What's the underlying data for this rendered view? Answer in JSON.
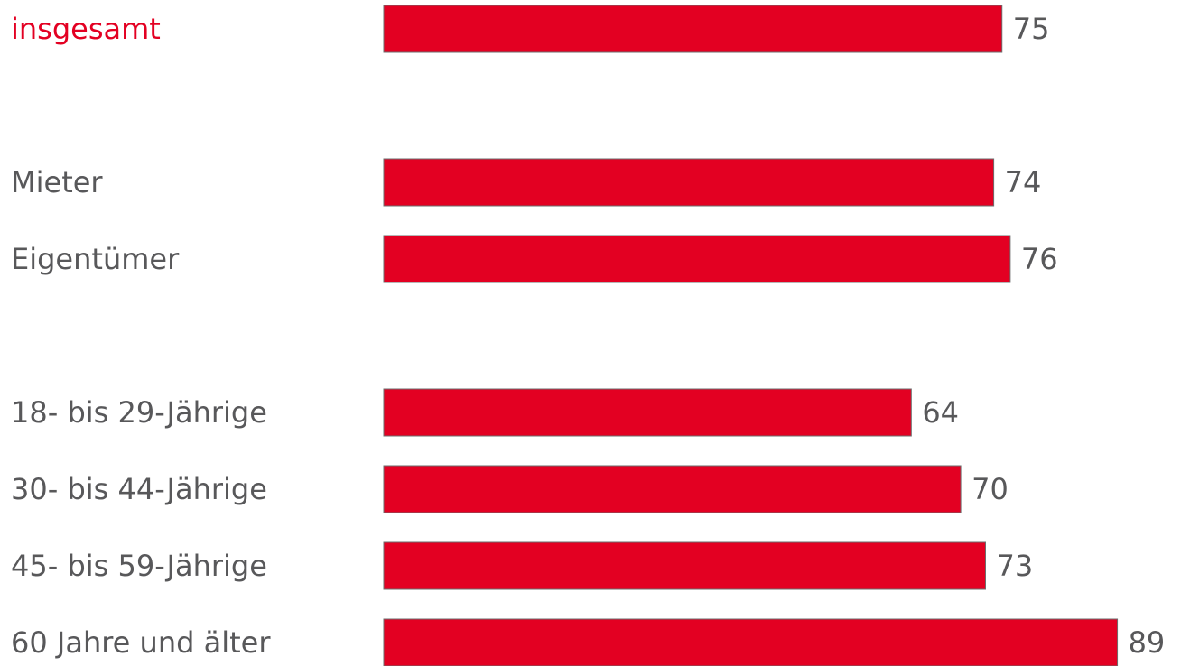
{
  "chart_data": {
    "type": "bar",
    "orientation": "horizontal",
    "categories": [
      "insgesamt",
      "Mieter",
      "Eigentümer",
      "18- bis 29-Jährige",
      "30- bis 44-Jährige",
      "45- bis 59-Jährige",
      "60 Jahre und älter"
    ],
    "values": [
      75,
      74,
      76,
      64,
      70,
      73,
      89
    ],
    "groups": [
      [
        0
      ],
      [
        1,
        2
      ],
      [
        3,
        4,
        5,
        6
      ]
    ],
    "highlight_category": "insgesamt",
    "colors": {
      "bar": "#e30022",
      "bar_border": "#6d6d6d",
      "label": "#58585a",
      "highlight_label": "#e30022"
    },
    "grid": false,
    "legend": "none"
  }
}
